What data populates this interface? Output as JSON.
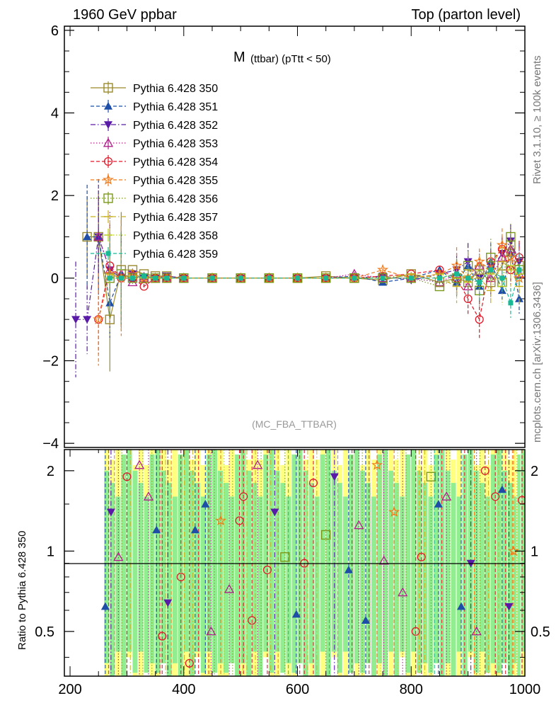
{
  "header": {
    "left": "1960 GeV ppbar",
    "right": "Top (parton level)"
  },
  "side_labels": {
    "rivet": "Rivet 3.1.10, ≥ 100k events",
    "mcplots": "mcplots.cern.ch [arXiv:1306.3436]"
  },
  "chart_data": [
    {
      "type": "line",
      "title_main": "M",
      "title_sub": "(ttbar) (pTtt < 50)",
      "analysis_label": "(MC_FBA_TTBAR)",
      "xlabel": "",
      "ylabel": "",
      "xlim": [
        190,
        1000
      ],
      "ylim": [
        -4.1,
        6.1
      ],
      "y_ticks": [
        6,
        4,
        2,
        0,
        -2,
        -4
      ],
      "y_tick_labels": [
        "6",
        "4",
        "2",
        "0",
        "−2",
        "−4"
      ],
      "legend_position": "top-left",
      "grid": false,
      "x": [
        210,
        230,
        250,
        270,
        290,
        310,
        330,
        350,
        370,
        400,
        450,
        500,
        550,
        600,
        650,
        700,
        750,
        800,
        850,
        880,
        900,
        920,
        940,
        960,
        975,
        990
      ],
      "series": [
        {
          "name": "Pythia 6.428 350",
          "color": "#9a8a2a",
          "marker": "open-square",
          "dash": "solid",
          "values": [
            null,
            1.0,
            1.0,
            -1.0,
            0.2,
            0.2,
            0.1,
            0.05,
            0.05,
            0.0,
            0.0,
            0.0,
            0.0,
            0.0,
            0.05,
            0.0,
            -0.05,
            0.1,
            -0.1,
            0.0,
            -0.1,
            0.2,
            -0.1,
            0.3,
            0.8,
            0.3
          ]
        },
        {
          "name": "Pythia 6.428 351",
          "color": "#1f4ea8",
          "marker": "filled-triangle-up",
          "dash": "dashed",
          "values": [
            null,
            1.0,
            1.0,
            -0.6,
            0.1,
            0.0,
            0.05,
            0.0,
            0.0,
            0.0,
            0.0,
            0.0,
            0.0,
            0.0,
            0.0,
            0.05,
            -0.1,
            0.0,
            0.2,
            -0.1,
            0.3,
            -0.2,
            0.4,
            -0.3,
            0.6,
            -0.5
          ]
        },
        {
          "name": "Pythia 6.428 352",
          "color": "#5a1aa8",
          "marker": "filled-triangle-down",
          "dash": "dashdot",
          "values": [
            -1.0,
            -1.0,
            1.0,
            0.2,
            0.0,
            0.1,
            0.0,
            0.0,
            0.05,
            0.0,
            0.0,
            0.0,
            0.0,
            0.0,
            0.0,
            0.0,
            0.05,
            -0.05,
            0.1,
            0.2,
            0.4,
            0.0,
            0.2,
            0.6,
            0.9,
            0.4
          ]
        },
        {
          "name": "Pythia 6.428 353",
          "color": "#b0208a",
          "marker": "open-triangle-up",
          "dash": "dotted",
          "values": [
            null,
            null,
            1.0,
            0.2,
            0.1,
            -0.1,
            0.0,
            0.0,
            0.0,
            0.0,
            0.0,
            0.0,
            0.0,
            0.0,
            0.0,
            0.1,
            0.0,
            0.0,
            -0.1,
            0.1,
            -0.2,
            0.3,
            0.0,
            0.5,
            0.7,
            0.1
          ]
        },
        {
          "name": "Pythia 6.428 354",
          "color": "#e01a2a",
          "marker": "open-circle",
          "dash": "dashed",
          "values": [
            null,
            null,
            -1.0,
            0.3,
            0.0,
            0.0,
            -0.2,
            0.0,
            0.0,
            0.0,
            0.0,
            0.0,
            0.0,
            0.0,
            0.0,
            0.0,
            0.05,
            0.1,
            0.2,
            0.0,
            -0.5,
            -1.0,
            0.4,
            0.7,
            0.2,
            0.5
          ]
        },
        {
          "name": "Pythia 6.428 355",
          "color": "#f07a1a",
          "marker": "open-star",
          "dash": "dashed",
          "values": [
            null,
            null,
            -1.0,
            0.1,
            0.0,
            0.1,
            0.0,
            0.0,
            0.0,
            0.0,
            0.0,
            0.0,
            0.0,
            0.0,
            0.0,
            0.0,
            0.2,
            0.0,
            0.1,
            0.3,
            0.0,
            0.4,
            0.2,
            0.8,
            0.5,
            0.0
          ]
        },
        {
          "name": "Pythia 6.428 356",
          "color": "#7a9a1a",
          "marker": "open-square",
          "dash": "dotted",
          "values": [
            null,
            null,
            null,
            0.0,
            0.1,
            0.0,
            0.0,
            0.0,
            0.0,
            0.0,
            0.0,
            0.0,
            0.0,
            0.0,
            0.0,
            0.0,
            0.0,
            0.0,
            -0.2,
            0.0,
            0.3,
            -0.3,
            0.5,
            -0.1,
            1.0,
            0.2
          ]
        },
        {
          "name": "Pythia 6.428 357",
          "color": "#c8b020",
          "marker": "none",
          "dash": "dashdot",
          "values": [
            null,
            null,
            null,
            0.1,
            0.0,
            0.0,
            0.0,
            0.0,
            0.0,
            0.0,
            0.0,
            0.0,
            0.0,
            0.0,
            0.0,
            0.0,
            0.0,
            0.1,
            0.0,
            -0.2,
            0.2,
            0.0,
            -0.3,
            0.4,
            0.2,
            -0.2
          ]
        },
        {
          "name": "Pythia 6.428 358",
          "color": "#b8d020",
          "marker": "none",
          "dash": "dotted",
          "values": [
            null,
            null,
            null,
            0.0,
            0.0,
            0.05,
            0.0,
            0.0,
            0.0,
            0.0,
            0.0,
            0.0,
            0.0,
            0.0,
            0.0,
            0.0,
            0.0,
            0.0,
            0.1,
            0.0,
            -0.1,
            0.2,
            0.1,
            -0.2,
            0.3,
            0.1
          ]
        },
        {
          "name": "Pythia 6.428 359",
          "color": "#1ab894",
          "marker": "filled-small",
          "dash": "dashed",
          "values": [
            null,
            null,
            null,
            0.0,
            0.0,
            0.0,
            0.05,
            0.0,
            0.0,
            0.0,
            0.0,
            0.0,
            0.0,
            0.0,
            0.0,
            0.0,
            0.0,
            0.0,
            0.0,
            0.1,
            0.0,
            -0.1,
            0.2,
            0.0,
            -0.6,
            0.2
          ]
        }
      ]
    },
    {
      "type": "line",
      "ylabel": "Ratio to Pythia 6.428 350",
      "xlim": [
        190,
        1000
      ],
      "ylim": [
        0.34,
        2.4
      ],
      "y_scale": "log",
      "y_ticks": [
        2,
        1,
        0.5
      ],
      "y_tick_labels": [
        "2",
        "1",
        "0.5"
      ],
      "x_ticks": [
        200,
        400,
        600,
        800,
        1000
      ],
      "x_tick_labels": [
        "200",
        "400",
        "600",
        "800",
        "1000"
      ],
      "reference_line": 1,
      "band_colors": {
        "inner": "#90ee90",
        "outer": "#ffff80"
      },
      "bin_edges": [
        260,
        290,
        320,
        350,
        380,
        410,
        440,
        470,
        500,
        530,
        560,
        590,
        620,
        650,
        680,
        710,
        740,
        770,
        800,
        830,
        860,
        890,
        920,
        950,
        980,
        1000
      ],
      "ratio_points": [
        {
          "x": 262,
          "y": 0.62,
          "series": 1
        },
        {
          "x": 272,
          "y": 1.4,
          "series": 2
        },
        {
          "x": 285,
          "y": 0.95,
          "series": 3
        },
        {
          "x": 300,
          "y": 1.9,
          "series": 4
        },
        {
          "x": 322,
          "y": 2.1,
          "series": 3
        },
        {
          "x": 338,
          "y": 1.6,
          "series": 3
        },
        {
          "x": 352,
          "y": 1.2,
          "series": 1
        },
        {
          "x": 362,
          "y": 0.48,
          "series": 4
        },
        {
          "x": 372,
          "y": 0.64,
          "series": 2
        },
        {
          "x": 395,
          "y": 0.8,
          "series": 4
        },
        {
          "x": 410,
          "y": 0.38,
          "series": 4
        },
        {
          "x": 420,
          "y": 1.2,
          "series": 1
        },
        {
          "x": 438,
          "y": 1.5,
          "series": 1
        },
        {
          "x": 448,
          "y": 0.5,
          "series": 3
        },
        {
          "x": 465,
          "y": 1.3,
          "series": 5
        },
        {
          "x": 480,
          "y": 0.72,
          "series": 3
        },
        {
          "x": 498,
          "y": 1.3,
          "series": 4
        },
        {
          "x": 505,
          "y": 1.6,
          "series": 4
        },
        {
          "x": 520,
          "y": 0.55,
          "series": 4
        },
        {
          "x": 530,
          "y": 2.1,
          "series": 3
        },
        {
          "x": 547,
          "y": 0.85,
          "series": 4
        },
        {
          "x": 560,
          "y": 1.4,
          "series": 2
        },
        {
          "x": 578,
          "y": 0.95,
          "series": 6
        },
        {
          "x": 598,
          "y": 0.58,
          "series": 1
        },
        {
          "x": 612,
          "y": 0.9,
          "series": 4
        },
        {
          "x": 628,
          "y": 1.8,
          "series": 4
        },
        {
          "x": 650,
          "y": 1.15,
          "series": 6
        },
        {
          "x": 665,
          "y": 1.9,
          "series": 2
        },
        {
          "x": 690,
          "y": 0.85,
          "series": 1
        },
        {
          "x": 708,
          "y": 1.25,
          "series": 3
        },
        {
          "x": 720,
          "y": 0.55,
          "series": 1
        },
        {
          "x": 740,
          "y": 2.1,
          "series": 5
        },
        {
          "x": 752,
          "y": 0.92,
          "series": 3
        },
        {
          "x": 770,
          "y": 1.4,
          "series": 5
        },
        {
          "x": 785,
          "y": 0.7,
          "series": 3
        },
        {
          "x": 808,
          "y": 0.5,
          "series": 4
        },
        {
          "x": 818,
          "y": 0.95,
          "series": 4
        },
        {
          "x": 835,
          "y": 1.9,
          "series": 6
        },
        {
          "x": 848,
          "y": 1.5,
          "series": 1
        },
        {
          "x": 862,
          "y": 1.6,
          "series": 3
        },
        {
          "x": 888,
          "y": 0.62,
          "series": 1
        },
        {
          "x": 905,
          "y": 0.9,
          "series": 2
        },
        {
          "x": 915,
          "y": 0.5,
          "series": 3
        },
        {
          "x": 930,
          "y": 2.0,
          "series": 4
        },
        {
          "x": 948,
          "y": 1.6,
          "series": 4
        },
        {
          "x": 960,
          "y": 1.7,
          "series": 1
        },
        {
          "x": 972,
          "y": 0.62,
          "series": 2
        },
        {
          "x": 980,
          "y": 1.0,
          "series": 5
        },
        {
          "x": 995,
          "y": 1.55,
          "series": 4
        }
      ]
    }
  ]
}
